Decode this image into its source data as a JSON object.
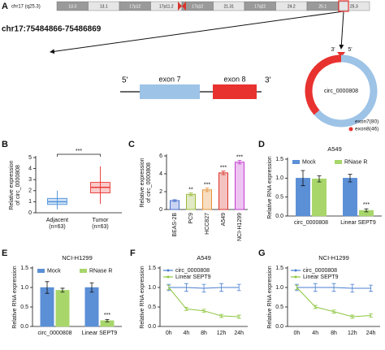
{
  "panel_a": {
    "label": "A",
    "ideogram": {
      "name": "chr17 (q25.3)",
      "bands": [
        "13.3",
        "13.1",
        "17p12",
        "17p11.2",
        "17q12",
        "21.31",
        "17q22",
        "24.2",
        "25.1",
        "25.3"
      ]
    },
    "locus": "chr17:75484866-75486869",
    "gene": {
      "five_prime": "5'",
      "three_prime": "3'",
      "exons": [
        "exon 7",
        "exon 8"
      ]
    },
    "circle": {
      "label": "circ_0000808",
      "ends": [
        "3'",
        "5'"
      ],
      "segments": [
        {
          "label": "exon7(80)",
          "length": 80,
          "color": "#9dc3e6"
        },
        {
          "label": "exon8(46)",
          "length": 46,
          "color": "#e8322f"
        }
      ]
    }
  },
  "chart_data": [
    {
      "type": "box",
      "panel": "B",
      "ylabel": [
        "Relative expression",
        "of circ_0000808"
      ],
      "categories": [
        "Adjacent",
        "Tumor"
      ],
      "category_notes": [
        "(n=63)",
        "(n=63)"
      ],
      "colors": [
        "#4a90d9",
        "#e8322f"
      ],
      "min": [
        0.3,
        0.8
      ],
      "q1": [
        0.75,
        1.8
      ],
      "median": [
        1.0,
        2.3
      ],
      "q3": [
        1.3,
        2.75
      ],
      "max": [
        2.0,
        4.2
      ],
      "ylim": [
        0,
        5
      ],
      "yticks": [
        0,
        1,
        2,
        3,
        4,
        5
      ],
      "significance": "***"
    },
    {
      "type": "bar",
      "panel": "C",
      "ylabel": [
        "Relative expression",
        "of circ_0000808"
      ],
      "categories": [
        "BEAS-2B",
        "PC9",
        "HCC827",
        "A549",
        "NCI-H1299"
      ],
      "values": [
        1.0,
        1.7,
        2.2,
        4.1,
        5.3
      ],
      "errors": [
        0.1,
        0.15,
        0.2,
        0.2,
        0.2
      ],
      "colors": [
        "#4a6fd0",
        "#9bbb3c",
        "#e69138",
        "#d9342b",
        "#c23bd0"
      ],
      "significance": [
        null,
        "**",
        "***",
        "***",
        "***"
      ],
      "ylim": [
        0,
        6
      ],
      "yticks": [
        0,
        2,
        4,
        6
      ]
    },
    {
      "type": "bar",
      "panel": "D",
      "title": "A549",
      "ylabel": [
        "Relative RNA expression"
      ],
      "categories": [
        "circ_0000808",
        "Linear SEPT9"
      ],
      "series": [
        {
          "name": "Mock",
          "color": "#5b8fd6",
          "values": [
            1.0,
            1.0
          ],
          "errors": [
            0.2,
            0.1
          ]
        },
        {
          "name": "RNase R",
          "color": "#a8d66b",
          "values": [
            0.98,
            0.15
          ],
          "errors": [
            0.08,
            0.04
          ],
          "significance": [
            null,
            "***"
          ]
        }
      ],
      "ylim": [
        0,
        1.5
      ],
      "yticks": [
        {
          "value": 0,
          "label": "0.0"
        },
        0.5,
        {
          "value": 1,
          "label": "1.0"
        },
        1.5
      ]
    },
    {
      "type": "bar",
      "panel": "E",
      "title": "NCI-H1299",
      "ylabel": [
        "Relative RNA expression"
      ],
      "categories": [
        "circ_0000808",
        "Linear SEPT9"
      ],
      "series": [
        {
          "name": "Mock",
          "color": "#5b8fd6",
          "values": [
            1.0,
            1.0
          ],
          "errors": [
            0.15,
            0.12
          ]
        },
        {
          "name": "RNase R",
          "color": "#a8d66b",
          "values": [
            0.93,
            0.15
          ],
          "errors": [
            0.05,
            0.03
          ],
          "significance": [
            null,
            "***"
          ]
        }
      ],
      "ylim": [
        0,
        1.5
      ],
      "yticks": [
        {
          "value": 0,
          "label": "0.0"
        },
        0.5,
        {
          "value": 1,
          "label": "1.0"
        },
        1.5
      ]
    },
    {
      "type": "line",
      "panel": "F",
      "title": "A549",
      "ylabel": [
        "Relative RNA expression"
      ],
      "categories": [
        "0h",
        "4h",
        "8h",
        "12h",
        "24h"
      ],
      "series": [
        {
          "name": "circ_0000808",
          "color": "#4a7fd0",
          "values": [
            1.0,
            1.0,
            0.98,
            1.0,
            1.0
          ],
          "errors": [
            0.08,
            0.1,
            0.1,
            0.1,
            0.08
          ]
        },
        {
          "name": "Linear SEPT9",
          "color": "#8dc63f",
          "values": [
            1.0,
            0.45,
            0.4,
            0.27,
            0.25
          ],
          "errors": [
            0.05,
            0.04,
            0.04,
            0.04,
            0.04
          ]
        }
      ],
      "ylim": [
        0,
        1.5
      ],
      "yticks": [
        {
          "value": 0,
          "label": "0.0"
        },
        0.5,
        {
          "value": 1,
          "label": "1.0"
        },
        1.5
      ]
    },
    {
      "type": "line",
      "panel": "G",
      "title": "NCI-H1299",
      "ylabel": [
        "Relative RNA expression"
      ],
      "categories": [
        "0h",
        "4h",
        "8h",
        "12h",
        "24h"
      ],
      "series": [
        {
          "name": "circ_0000808",
          "color": "#4a7fd0",
          "values": [
            1.0,
            1.0,
            1.0,
            0.98,
            0.98
          ],
          "errors": [
            0.08,
            0.1,
            0.1,
            0.1,
            0.08
          ]
        },
        {
          "name": "Linear SEPT9",
          "color": "#8dc63f",
          "values": [
            1.0,
            0.5,
            0.38,
            0.25,
            0.28
          ],
          "errors": [
            0.05,
            0.04,
            0.04,
            0.04,
            0.04
          ]
        }
      ],
      "ylim": [
        0,
        1.5
      ],
      "yticks": [
        {
          "value": 0,
          "label": "0.0"
        },
        0.5,
        {
          "value": 1,
          "label": "1.0"
        },
        1.5
      ]
    }
  ]
}
